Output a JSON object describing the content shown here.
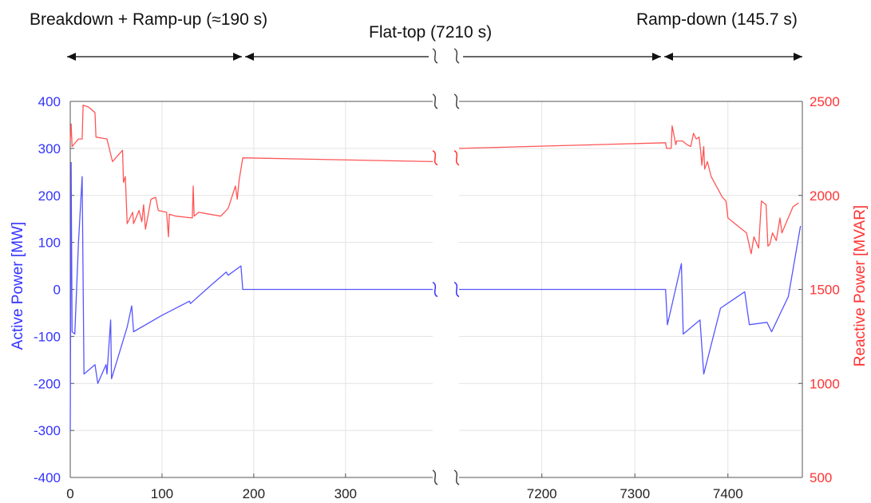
{
  "chart_data": {
    "type": "line",
    "phases": [
      {
        "label": "Breakdown + Ramp-up (≈190 s)"
      },
      {
        "label": "Flat-top (7210 s)"
      },
      {
        "label": "Ramp-down (145.7 s)"
      }
    ],
    "left_panel": {
      "xlim": [
        0,
        395
      ],
      "xticks": [
        0,
        100,
        200,
        300
      ]
    },
    "right_panel": {
      "xlim": [
        7111,
        7480
      ],
      "xticks": [
        7200,
        7300,
        7400
      ]
    },
    "y_left": {
      "label": "Active Power [MW]",
      "ylim": [
        -400,
        400
      ],
      "ticks": [
        -400,
        -300,
        -200,
        -100,
        0,
        100,
        200,
        300,
        400
      ],
      "color": "#3333ff"
    },
    "y_right": {
      "label": "Reactive Power [MVAR]",
      "ylim": [
        500,
        2500
      ],
      "ticks": [
        500,
        1000,
        1500,
        2000,
        2500
      ],
      "color": "#ff3333"
    },
    "grid": true,
    "series": [
      {
        "axis": "left",
        "color": "#5555ff",
        "left_points": [
          [
            0,
            -300
          ],
          [
            1,
            270
          ],
          [
            2,
            -90
          ],
          [
            5,
            -95
          ],
          [
            9,
            100
          ],
          [
            13,
            240
          ],
          [
            15,
            -180
          ],
          [
            27,
            -160
          ],
          [
            30,
            -200
          ],
          [
            39,
            -160
          ],
          [
            40,
            -180
          ],
          [
            44,
            -65
          ],
          [
            45,
            -190
          ],
          [
            62,
            -80
          ],
          [
            67,
            -35
          ],
          [
            69,
            -90
          ],
          [
            100,
            -55
          ],
          [
            130,
            -25
          ],
          [
            131,
            -30
          ],
          [
            154,
            10
          ],
          [
            170,
            37
          ],
          [
            172,
            30
          ],
          [
            186,
            50
          ],
          [
            188,
            0
          ],
          [
            395,
            0
          ]
        ],
        "right_points": [
          [
            7111,
            0
          ],
          [
            7333,
            0
          ],
          [
            7335,
            -75
          ],
          [
            7350,
            55
          ],
          [
            7352,
            -95
          ],
          [
            7370,
            -65
          ],
          [
            7374,
            -180
          ],
          [
            7392,
            -40
          ],
          [
            7418,
            -5
          ],
          [
            7423,
            -75
          ],
          [
            7442,
            -70
          ],
          [
            7447,
            -90
          ],
          [
            7465,
            -15
          ],
          [
            7478,
            135
          ]
        ]
      },
      {
        "axis": "right",
        "color": "#ff5555",
        "left_points": [
          [
            0,
            2290
          ],
          [
            1,
            2380
          ],
          [
            2,
            2260
          ],
          [
            9,
            2300
          ],
          [
            13,
            2300
          ],
          [
            14,
            2480
          ],
          [
            20,
            2470
          ],
          [
            27,
            2440
          ],
          [
            28,
            2310
          ],
          [
            40,
            2300
          ],
          [
            46,
            2180
          ],
          [
            57,
            2240
          ],
          [
            58,
            2070
          ],
          [
            60,
            2100
          ],
          [
            62,
            1850
          ],
          [
            68,
            1910
          ],
          [
            69,
            1850
          ],
          [
            75,
            1920
          ],
          [
            78,
            1860
          ],
          [
            80,
            1950
          ],
          [
            82,
            1820
          ],
          [
            88,
            1980
          ],
          [
            93,
            1990
          ],
          [
            96,
            1920
          ],
          [
            105,
            1910
          ],
          [
            107,
            1780
          ],
          [
            108,
            1900
          ],
          [
            115,
            1890
          ],
          [
            133,
            1880
          ],
          [
            134,
            2050
          ],
          [
            135,
            1890
          ],
          [
            140,
            1910
          ],
          [
            164,
            1890
          ],
          [
            172,
            1930
          ],
          [
            180,
            2050
          ],
          [
            182,
            1980
          ],
          [
            184,
            2080
          ],
          [
            188,
            2200
          ],
          [
            395,
            2180
          ]
        ],
        "right_points": [
          [
            7111,
            2250
          ],
          [
            7333,
            2280
          ],
          [
            7334,
            2250
          ],
          [
            7339,
            2250
          ],
          [
            7340,
            2370
          ],
          [
            7344,
            2270
          ],
          [
            7345,
            2290
          ],
          [
            7351,
            2290
          ],
          [
            7356,
            2270
          ],
          [
            7360,
            2260
          ],
          [
            7363,
            2330
          ],
          [
            7366,
            2300
          ],
          [
            7369,
            2310
          ],
          [
            7371,
            2220
          ],
          [
            7372,
            2160
          ],
          [
            7374,
            2260
          ],
          [
            7375,
            2140
          ],
          [
            7378,
            2180
          ],
          [
            7382,
            2100
          ],
          [
            7394,
            1990
          ],
          [
            7398,
            1970
          ],
          [
            7400,
            1880
          ],
          [
            7405,
            1860
          ],
          [
            7420,
            1800
          ],
          [
            7425,
            1690
          ],
          [
            7428,
            1780
          ],
          [
            7433,
            1720
          ],
          [
            7436,
            1970
          ],
          [
            7441,
            1950
          ],
          [
            7443,
            1730
          ],
          [
            7445,
            1740
          ],
          [
            7448,
            1800
          ],
          [
            7452,
            1760
          ],
          [
            7456,
            1880
          ],
          [
            7458,
            1800
          ],
          [
            7470,
            1940
          ],
          [
            7476,
            1960
          ]
        ]
      }
    ]
  }
}
